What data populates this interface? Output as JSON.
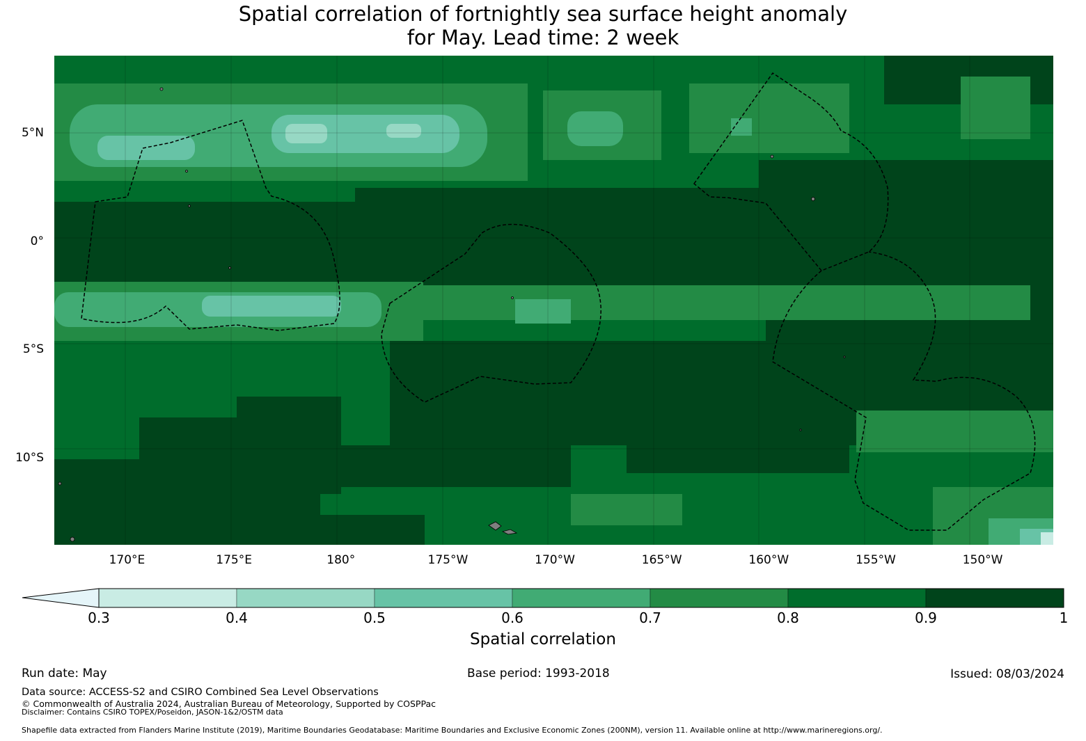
{
  "title_line1": "Spatial correlation of fortnightly sea surface height anomaly",
  "title_line2": "for May. Lead time: 2 week",
  "map": {
    "lon_range": [
      166.6,
      213.3
    ],
    "lat_range": [
      -14.0,
      8.6
    ],
    "y_ticks": [
      {
        "label": "5°N",
        "lat": 5
      },
      {
        "label": "0°",
        "lat": 0
      },
      {
        "label": "5°S",
        "lat": -5
      },
      {
        "label": "10°S",
        "lat": -10
      }
    ],
    "x_ticks": [
      {
        "label": "170°E",
        "lon": 170
      },
      {
        "label": "175°E",
        "lon": 175
      },
      {
        "label": "180°",
        "lon": 180
      },
      {
        "label": "175°W",
        "lon": 185
      },
      {
        "label": "170°W",
        "lon": 190
      },
      {
        "label": "165°W",
        "lon": 195
      },
      {
        "label": "160°W",
        "lon": 200
      },
      {
        "label": "155°W",
        "lon": 205
      },
      {
        "label": "150°W",
        "lon": 210
      }
    ],
    "colors": {
      "c03": "#c9ece4",
      "c04": "#97d8c4",
      "c05": "#67c3a6",
      "c06": "#41ab74",
      "c07": "#238b45",
      "c08": "#006d2c",
      "c09": "#00441b",
      "extend_min": "#e5f5f9"
    }
  },
  "colorbar": {
    "label": "Spatial correlation",
    "ticks": [
      "0.3",
      "0.4",
      "0.5",
      "0.6",
      "0.7",
      "0.8",
      "0.9",
      "1"
    ],
    "bin_colors": [
      "#c9ece4",
      "#97d8c4",
      "#67c3a6",
      "#41ab74",
      "#238b45",
      "#006d2c",
      "#00441b"
    ]
  },
  "footer": {
    "run_date": "Run date: May",
    "base_period": "Base period: 1993-2018",
    "issued": "Issued: 08/03/2024",
    "data_source": "Data source: ACCESS-S2 and CSIRO Combined Sea Level Observations",
    "copyright": "© Commonwealth of Australia 2024, Australian Bureau of Meteorology, Supported by COSPPac",
    "disclaimer": "Disclaimer: Contains CSIRO TOPEX/Poseidon, JASON-1&2/OSTM data",
    "shapefile": "Shapefile data extracted from Flanders Marine Institute (2019), Maritime Boundaries Geodatabase: Maritime Boundaries and Exclusive Economic Zones (200NM), version 11. Available online at http://www.marineregions.org/."
  }
}
